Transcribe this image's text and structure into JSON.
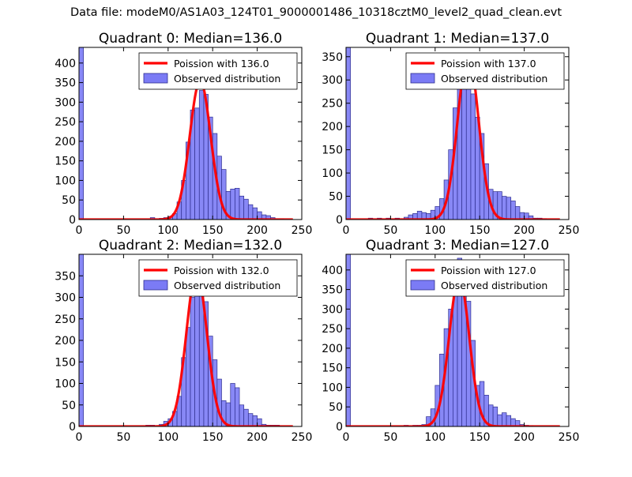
{
  "figure": {
    "suptitle": "Data file: modeM0/AS1A03_124T01_9000001486_10318cztM0_level2_quad_clean.evt"
  },
  "colors": {
    "bar_fill": "#7b7bf5",
    "bar_edge": "#2f2f8f",
    "fit_line": "#ff0000"
  },
  "chart_data": [
    {
      "type": "bar",
      "title": "Quadrant 0: Median=136.0",
      "xlim": [
        0,
        250
      ],
      "ylim": [
        0,
        440
      ],
      "xticks": [
        0,
        50,
        100,
        150,
        200,
        250
      ],
      "yticks": [
        0,
        50,
        100,
        150,
        200,
        250,
        300,
        350,
        400
      ],
      "legend": {
        "placement": "top-right",
        "line_label": "Poission with 136.0",
        "bar_label": "Observed distribution"
      },
      "poisson_mean": 136.0,
      "poisson_peak": 355,
      "bin_width": 5,
      "bins": [
        [
          0,
          440
        ],
        [
          80,
          5
        ],
        [
          90,
          3
        ],
        [
          95,
          5
        ],
        [
          100,
          8
        ],
        [
          105,
          15
        ],
        [
          110,
          45
        ],
        [
          115,
          100
        ],
        [
          120,
          198
        ],
        [
          125,
          280
        ],
        [
          130,
          285
        ],
        [
          135,
          330
        ],
        [
          140,
          320
        ],
        [
          145,
          262
        ],
        [
          150,
          220
        ],
        [
          155,
          162
        ],
        [
          160,
          128
        ],
        [
          165,
          72
        ],
        [
          170,
          78
        ],
        [
          175,
          80
        ],
        [
          180,
          60
        ],
        [
          185,
          52
        ],
        [
          190,
          38
        ],
        [
          195,
          30
        ],
        [
          200,
          20
        ],
        [
          205,
          12
        ],
        [
          210,
          10
        ],
        [
          215,
          5
        ],
        [
          220,
          2
        ],
        [
          225,
          2
        ]
      ]
    },
    {
      "type": "bar",
      "title": "Quadrant 1: Median=137.0",
      "xlim": [
        0,
        250
      ],
      "ylim": [
        0,
        370
      ],
      "xticks": [
        0,
        50,
        100,
        150,
        200,
        250
      ],
      "yticks": [
        0,
        50,
        100,
        150,
        200,
        250,
        300,
        350
      ],
      "legend": {
        "placement": "top-right",
        "line_label": "Poission with 137.0",
        "bar_label": "Observed distribution"
      },
      "poisson_mean": 137.0,
      "poisson_peak": 355,
      "bin_width": 5,
      "bins": [
        [
          0,
          370
        ],
        [
          25,
          3
        ],
        [
          35,
          3
        ],
        [
          45,
          3
        ],
        [
          55,
          3
        ],
        [
          65,
          5
        ],
        [
          70,
          10
        ],
        [
          75,
          13
        ],
        [
          80,
          18
        ],
        [
          85,
          15
        ],
        [
          90,
          13
        ],
        [
          95,
          20
        ],
        [
          100,
          28
        ],
        [
          105,
          45
        ],
        [
          110,
          85
        ],
        [
          115,
          150
        ],
        [
          120,
          240
        ],
        [
          125,
          350
        ],
        [
          130,
          320
        ],
        [
          135,
          335
        ],
        [
          140,
          270
        ],
        [
          145,
          220
        ],
        [
          150,
          185
        ],
        [
          155,
          120
        ],
        [
          160,
          65
        ],
        [
          165,
          60
        ],
        [
          170,
          60
        ],
        [
          175,
          50
        ],
        [
          180,
          48
        ],
        [
          185,
          40
        ],
        [
          190,
          28
        ],
        [
          195,
          15
        ],
        [
          200,
          14
        ],
        [
          205,
          8
        ],
        [
          210,
          3
        ],
        [
          215,
          3
        ],
        [
          220,
          2
        ]
      ]
    },
    {
      "type": "bar",
      "title": "Quadrant 2: Median=132.0",
      "xlim": [
        0,
        250
      ],
      "ylim": [
        0,
        400
      ],
      "xticks": [
        0,
        50,
        100,
        150,
        200,
        250
      ],
      "yticks": [
        0,
        50,
        100,
        150,
        200,
        250,
        300,
        350
      ],
      "legend": {
        "placement": "top-right",
        "line_label": "Poission with 132.0",
        "bar_label": "Observed distribution"
      },
      "poisson_mean": 132.0,
      "poisson_peak": 360,
      "bin_width": 5,
      "bins": [
        [
          0,
          400
        ],
        [
          75,
          3
        ],
        [
          80,
          3
        ],
        [
          90,
          5
        ],
        [
          95,
          12
        ],
        [
          100,
          18
        ],
        [
          105,
          35
        ],
        [
          110,
          70
        ],
        [
          115,
          160
        ],
        [
          120,
          230
        ],
        [
          125,
          300
        ],
        [
          130,
          360
        ],
        [
          135,
          345
        ],
        [
          140,
          290
        ],
        [
          145,
          210
        ],
        [
          150,
          155
        ],
        [
          155,
          110
        ],
        [
          160,
          60
        ],
        [
          165,
          55
        ],
        [
          170,
          100
        ],
        [
          175,
          90
        ],
        [
          180,
          50
        ],
        [
          185,
          40
        ],
        [
          190,
          30
        ],
        [
          195,
          25
        ],
        [
          200,
          18
        ],
        [
          205,
          5
        ],
        [
          210,
          3
        ],
        [
          215,
          3
        ],
        [
          220,
          3
        ]
      ]
    },
    {
      "type": "bar",
      "title": "Quadrant 3: Median=127.0",
      "xlim": [
        0,
        250
      ],
      "ylim": [
        0,
        440
      ],
      "xticks": [
        0,
        50,
        100,
        150,
        200,
        250
      ],
      "yticks": [
        0,
        50,
        100,
        150,
        200,
        250,
        300,
        350,
        400
      ],
      "legend": {
        "placement": "top-right",
        "line_label": "Poission with 127.0",
        "bar_label": "Observed distribution"
      },
      "poisson_mean": 127.0,
      "poisson_peak": 380,
      "bin_width": 5,
      "bins": [
        [
          0,
          440
        ],
        [
          65,
          3
        ],
        [
          75,
          3
        ],
        [
          80,
          3
        ],
        [
          85,
          5
        ],
        [
          90,
          25
        ],
        [
          95,
          45
        ],
        [
          100,
          105
        ],
        [
          105,
          185
        ],
        [
          110,
          250
        ],
        [
          115,
          300
        ],
        [
          120,
          370
        ],
        [
          125,
          430
        ],
        [
          130,
          340
        ],
        [
          135,
          320
        ],
        [
          140,
          220
        ],
        [
          145,
          105
        ],
        [
          150,
          115
        ],
        [
          155,
          80
        ],
        [
          160,
          55
        ],
        [
          165,
          50
        ],
        [
          170,
          30
        ],
        [
          175,
          35
        ],
        [
          180,
          28
        ],
        [
          185,
          20
        ],
        [
          190,
          15
        ],
        [
          195,
          5
        ],
        [
          200,
          3
        ],
        [
          205,
          2
        ]
      ]
    }
  ]
}
